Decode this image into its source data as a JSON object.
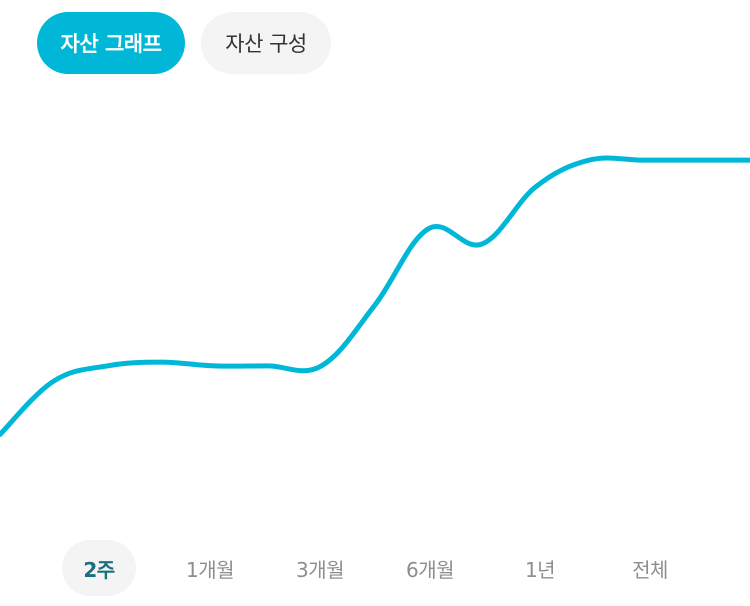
{
  "tabs": [
    {
      "label": "자산 그래프",
      "active": true
    },
    {
      "label": "자산 구성",
      "active": false
    }
  ],
  "chart_data": {
    "type": "line",
    "x": [
      0,
      1,
      2,
      3,
      4,
      5,
      6,
      7,
      8,
      9,
      10,
      11,
      12,
      13,
      14
    ],
    "values": [
      8,
      22,
      26,
      27,
      26,
      26,
      26,
      42,
      62,
      58,
      73,
      80,
      80,
      80,
      80
    ],
    "line_color": "#00b7d8",
    "grid": false,
    "title": "",
    "xlabel": "",
    "ylabel": ""
  },
  "periods": [
    {
      "label": "2주",
      "active": true
    },
    {
      "label": "1개월",
      "active": false
    },
    {
      "label": "3개월",
      "active": false
    },
    {
      "label": "6개월",
      "active": false
    },
    {
      "label": "1년",
      "active": false
    },
    {
      "label": "전체",
      "active": false
    }
  ],
  "colors": {
    "accent": "#00b7d8",
    "active_period_text": "#1a6f7d",
    "inactive_text": "#8e8e8e",
    "pill_bg": "#f4f4f4"
  }
}
